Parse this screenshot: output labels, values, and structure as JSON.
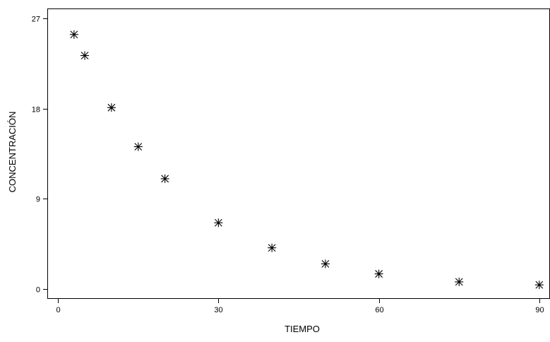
{
  "chart_data": {
    "type": "scatter",
    "title": "",
    "xlabel": "TIEMPO",
    "ylabel": "CONCENTRACIÓN",
    "xlim": [
      -2,
      92
    ],
    "ylim": [
      -1,
      28
    ],
    "xticks": [
      0,
      30,
      60,
      90
    ],
    "yticks": [
      0,
      9,
      18,
      27
    ],
    "xtick_labels": [
      "0",
      "30",
      "60",
      "90"
    ],
    "ytick_labels": [
      "0",
      "9",
      "18",
      "27"
    ],
    "marker": "asterisk",
    "grid": false,
    "series": [
      {
        "x": [
          3,
          5,
          10,
          15,
          20,
          30,
          40,
          50,
          60,
          75,
          90
        ],
        "y": [
          25.4,
          23.3,
          18.1,
          14.2,
          11.0,
          6.6,
          4.1,
          2.5,
          1.5,
          0.7,
          0.4
        ]
      }
    ]
  }
}
